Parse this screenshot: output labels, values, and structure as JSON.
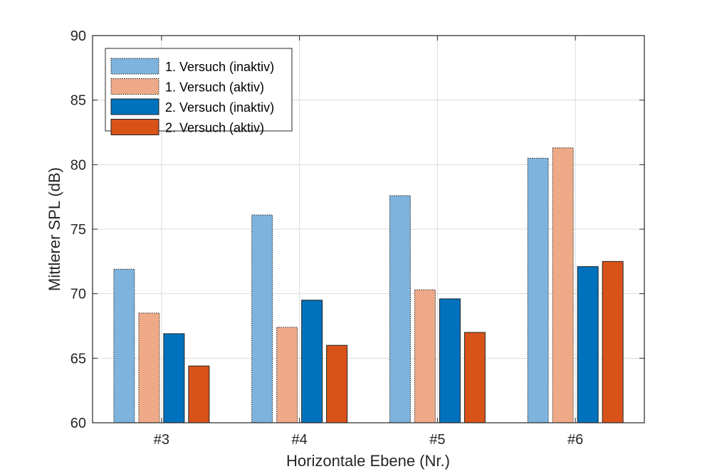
{
  "chart_data": {
    "type": "bar",
    "title": "",
    "xlabel": "Horizontale Ebene (Nr.)",
    "ylabel": "Mittlerer SPL (dB)",
    "ylim": [
      60,
      90
    ],
    "yticks": [
      "60",
      "65",
      "70",
      "75",
      "80",
      "85",
      "90"
    ],
    "grid": true,
    "legend_position": "top-left",
    "categories": [
      "#3",
      "#4",
      "#5",
      "#6"
    ],
    "series": [
      {
        "name": "1. Versuch (inaktiv)",
        "color": "#7EB3DD",
        "edge": "dotted",
        "values": [
          71.9,
          76.1,
          77.6,
          80.5
        ]
      },
      {
        "name": "1. Versuch (aktiv)",
        "color": "#EEAA88",
        "edge": "dotted",
        "values": [
          68.5,
          67.4,
          70.3,
          81.3
        ]
      },
      {
        "name": "2. Versuch (inaktiv)",
        "color": "#0072BD",
        "edge": "solid",
        "values": [
          66.9,
          69.5,
          69.6,
          72.1
        ]
      },
      {
        "name": "2. Versuch (aktiv)",
        "color": "#D95319",
        "edge": "solid",
        "values": [
          64.4,
          66.0,
          67.0,
          72.5
        ]
      }
    ]
  }
}
